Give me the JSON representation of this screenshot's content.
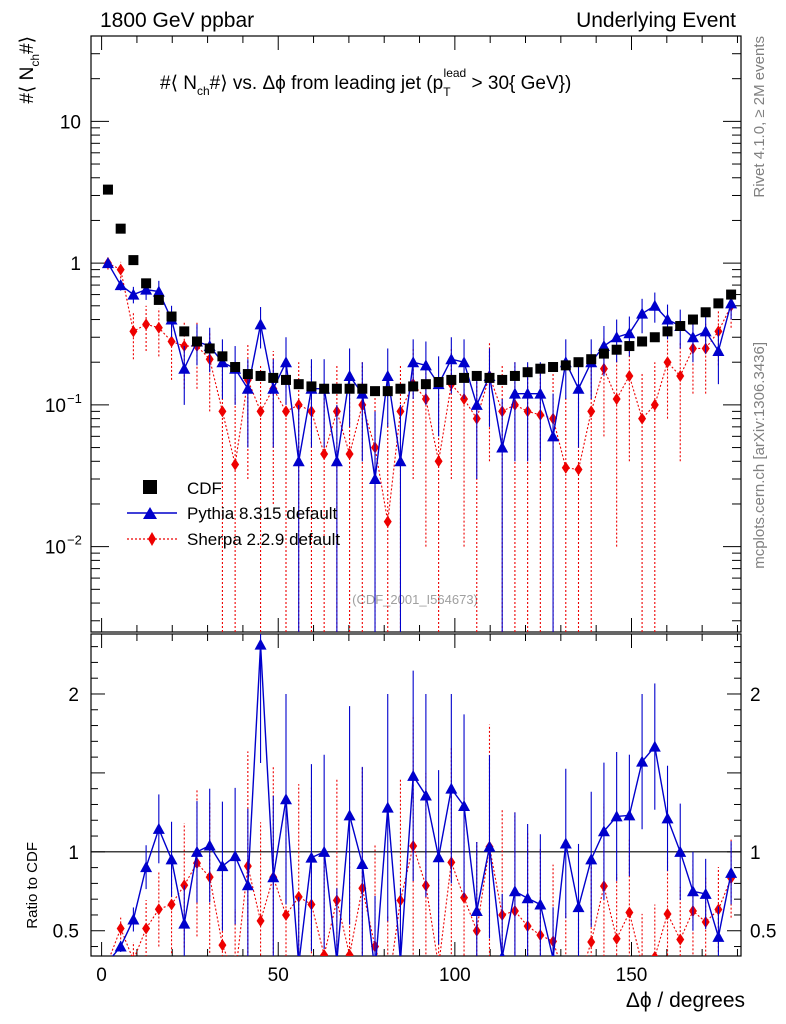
{
  "header": {
    "left": "1800 GeV ppbar",
    "right": "Underlying Event",
    "side_top": "Rivet 4.1.0, ≥ 2M events",
    "side_bottom": "mcplots.cern.ch [arXiv:1306.3436]",
    "watermark": "(CDF_2001_I564673)"
  },
  "chart_data": {
    "type": "line",
    "title": "#⟨ N_ch#⟩ vs. Δϕ from leading jet (p_T^lead > 30{ GeV})",
    "title_parts": {
      "a": "#⟨ N",
      "sub_ch": "ch",
      "b": "#⟩ vs. Δϕ from leading jet  (p",
      "sub_T": "T",
      "sup_lead": "lead",
      "c": " > 30{ GeV})"
    },
    "ylabel_parts": {
      "a": "#⟨ N",
      "sub": "ch",
      "b": "#⟩"
    },
    "xlabel": "Δϕ / degrees",
    "ratio_ylabel": "Ratio to CDF",
    "xlim": [
      -3,
      181
    ],
    "ylim_log": [
      0.0025,
      40
    ],
    "ratio_ylim": [
      0.34,
      2.38
    ],
    "x_ticks": [
      0,
      50,
      100,
      150
    ],
    "x_tick_labels": [
      "0",
      "50",
      "100",
      "150"
    ],
    "y_ticks": [
      {
        "value": 10,
        "label": "10"
      },
      {
        "value": 1,
        "label": "1"
      },
      {
        "value": 0.1,
        "label": "10",
        "exp": "−1"
      },
      {
        "value": 0.01,
        "label": "10",
        "exp": "−2"
      }
    ],
    "ratio_ticks": [
      {
        "value": 0.5,
        "label": "0.5"
      },
      {
        "value": 1,
        "label": "1"
      },
      {
        "value": 2,
        "label": "2"
      }
    ],
    "legend": [
      "CDF",
      "Pythia 8.315 default",
      "Sherpa 2.2.9 default"
    ],
    "x": [
      1.8,
      5.4,
      9,
      12.6,
      16.2,
      19.8,
      23.4,
      27,
      30.6,
      34.2,
      37.8,
      41.4,
      45,
      48.6,
      52.2,
      55.8,
      59.4,
      63,
      66.6,
      70.2,
      73.8,
      77.4,
      81,
      84.6,
      88.2,
      91.8,
      95.4,
      99,
      102.6,
      106.2,
      109.8,
      113.4,
      117,
      120.6,
      124.2,
      127.8,
      131.4,
      135,
      138.6,
      142.2,
      145.8,
      149.4,
      153,
      156.6,
      160.2,
      163.8,
      167.4,
      171,
      174.6,
      178.2
    ],
    "series": [
      {
        "name": "CDF",
        "color": "#000000",
        "marker": "square",
        "values": [
          3.3,
          1.75,
          1.05,
          0.72,
          0.55,
          0.42,
          0.33,
          0.28,
          0.25,
          0.22,
          0.185,
          0.165,
          0.16,
          0.155,
          0.15,
          0.14,
          0.135,
          0.13,
          0.13,
          0.13,
          0.13,
          0.125,
          0.125,
          0.13,
          0.135,
          0.14,
          0.145,
          0.15,
          0.155,
          0.16,
          0.155,
          0.15,
          0.16,
          0.17,
          0.18,
          0.185,
          0.19,
          0.2,
          0.21,
          0.23,
          0.245,
          0.26,
          0.28,
          0.3,
          0.33,
          0.36,
          0.4,
          0.45,
          0.52,
          0.6
        ]
      },
      {
        "name": "Pythia 8.315 default",
        "color": "#0000cc",
        "marker": "triangle",
        "values": [
          1.0,
          0.7,
          0.6,
          0.65,
          0.63,
          0.4,
          0.18,
          0.28,
          0.26,
          0.2,
          0.18,
          0.13,
          0.37,
          0.13,
          0.2,
          0.04,
          0.13,
          0.13,
          0.04,
          0.16,
          0.12,
          0.03,
          0.16,
          0.04,
          0.2,
          0.19,
          0.14,
          0.21,
          0.2,
          0.1,
          0.16,
          0.05,
          0.12,
          0.12,
          0.12,
          0.06,
          0.2,
          0.13,
          0.2,
          0.26,
          0.3,
          0.32,
          0.44,
          0.5,
          0.4,
          0.36,
          0.3,
          0.33,
          0.24,
          0.52
        ],
        "err": [
          0.05,
          0.06,
          0.08,
          0.1,
          0.12,
          0.1,
          0.08,
          0.09,
          0.09,
          0.09,
          0.08,
          0.08,
          0.12,
          0.08,
          0.1,
          0.06,
          0.08,
          0.08,
          0.06,
          0.09,
          0.08,
          0.06,
          0.09,
          0.06,
          0.09,
          0.09,
          0.08,
          0.09,
          0.09,
          0.07,
          0.09,
          0.06,
          0.08,
          0.08,
          0.08,
          0.06,
          0.09,
          0.08,
          0.09,
          0.1,
          0.1,
          0.1,
          0.12,
          0.12,
          0.11,
          0.11,
          0.1,
          0.1,
          0.1,
          0.12
        ]
      },
      {
        "name": "Sherpa 2.2.9 default",
        "color": "#ee0000",
        "marker": "diamond",
        "values": [
          1.0,
          0.9,
          0.33,
          0.37,
          0.35,
          0.28,
          0.26,
          0.26,
          0.21,
          0.09,
          0.038,
          0.15,
          0.09,
          0.13,
          0.09,
          0.1,
          0.09,
          0.045,
          0.09,
          0.045,
          0.1,
          0.05,
          0.015,
          0.09,
          0.14,
          0.11,
          0.04,
          0.14,
          0.11,
          0.08,
          0.16,
          0.09,
          0.1,
          0.09,
          0.085,
          0.08,
          0.036,
          0.035,
          0.09,
          0.18,
          0.11,
          0.16,
          0.08,
          0.1,
          0.2,
          0.16,
          0.25,
          0.25,
          0.33,
          0.5
        ],
        "err": [
          0.1,
          0.12,
          0.12,
          0.13,
          0.13,
          0.13,
          0.13,
          0.13,
          0.12,
          0.1,
          0.08,
          0.12,
          0.1,
          0.11,
          0.1,
          0.1,
          0.1,
          0.08,
          0.1,
          0.08,
          0.1,
          0.08,
          0.06,
          0.1,
          0.11,
          0.1,
          0.08,
          0.11,
          0.1,
          0.09,
          0.12,
          0.1,
          0.1,
          0.1,
          0.1,
          0.09,
          0.08,
          0.08,
          0.1,
          0.12,
          0.1,
          0.12,
          0.09,
          0.1,
          0.12,
          0.12,
          0.13,
          0.13,
          0.14,
          0.15
        ]
      }
    ]
  }
}
